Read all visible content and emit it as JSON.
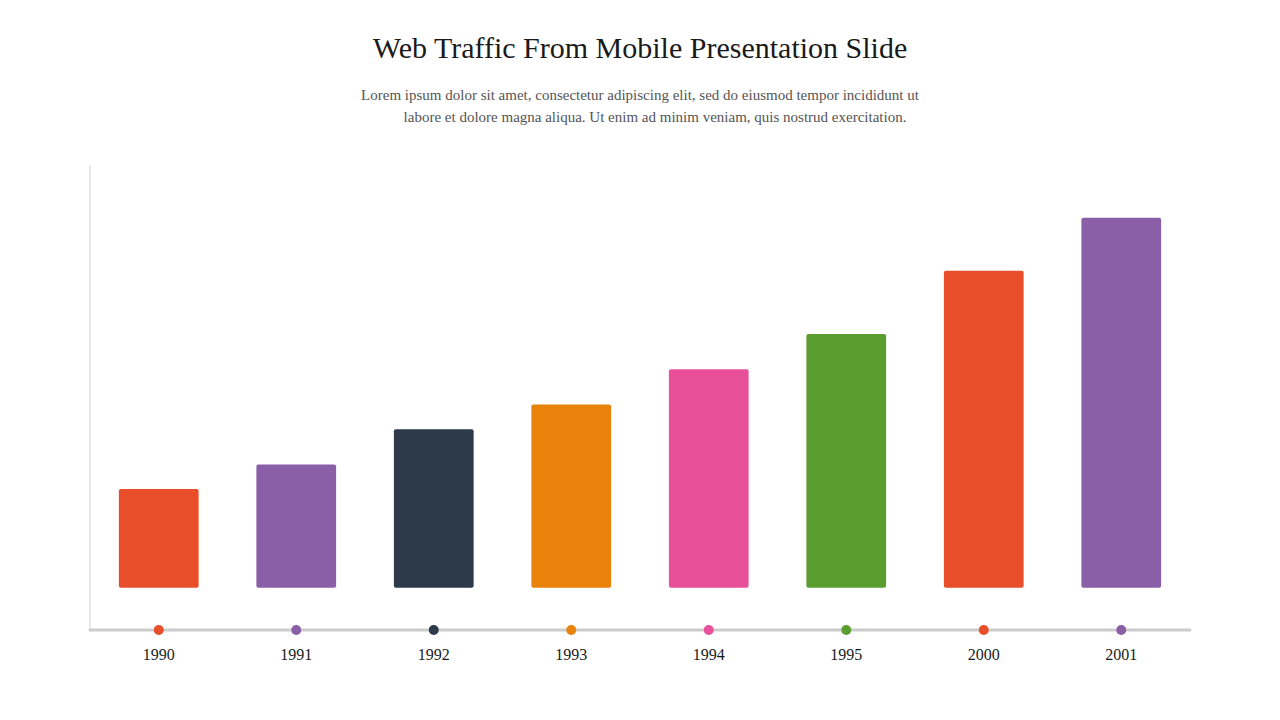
{
  "chart_data": {
    "type": "bar",
    "title": "Web Traffic From Mobile Presentation Slide",
    "subtitle": [
      "Lorem ipsum dolor sit amet, consectetur adipiscing elit, sed do eiusmod tempor incididunt ut",
      "        labore et dolore magna aliqua. Ut enim ad minim veniam, quis nostrud exercitation."
    ],
    "categories": [
      "1990",
      "1991",
      "1992",
      "1993",
      "1994",
      "1995",
      "2000",
      "2001"
    ],
    "values": [
      2.8,
      3.5,
      4.5,
      5.2,
      6.2,
      7.2,
      9.0,
      10.5
    ],
    "colors": [
      "#E84E2A",
      "#8B5EA8",
      "#2C3A4A",
      "#E8820A",
      "#E8509A",
      "#5B9E30",
      "#E84E2A",
      "#8B5EA8"
    ],
    "ylim": [
      -1.2,
      12.0
    ],
    "grid": false,
    "tick_labels": "x"
  }
}
